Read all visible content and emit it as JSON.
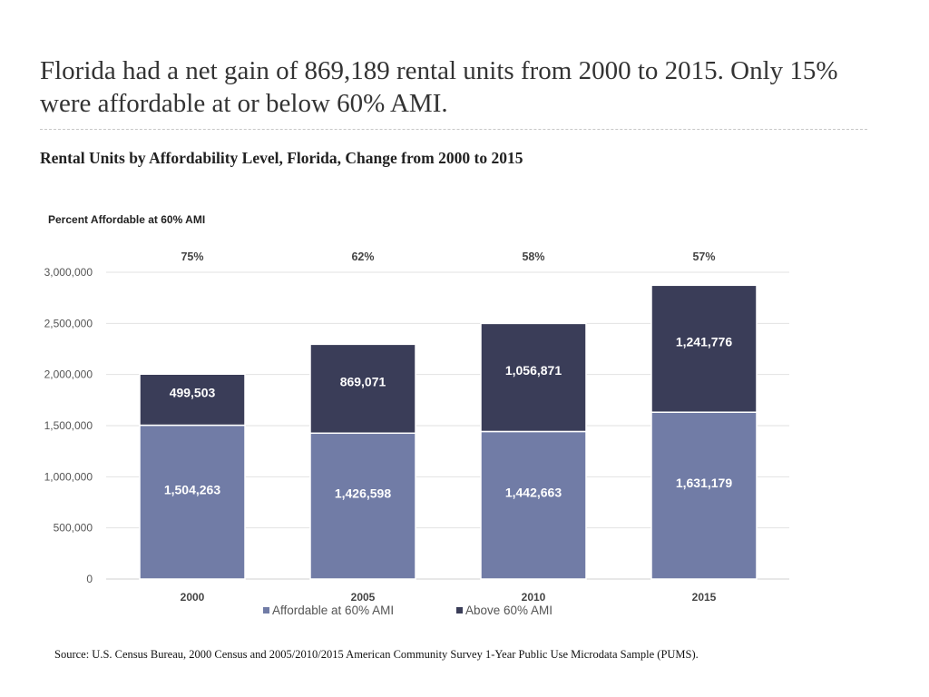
{
  "headline": "Florida had a net gain of 869,189 rental units from 2000 to 2015. Only 15% were affordable at or below 60% AMI.",
  "subtitle": "Rental Units by Affordability Level, Florida, Change from 2000 to 2015",
  "source": "Source: U.S. Census Bureau, 2000 Census and 2005/2010/2015 American Community Survey 1-Year Public Use Microdata Sample (PUMS).",
  "chart_data": {
    "type": "bar",
    "stacked": true,
    "title": "Rental Units by Affordability Level, Florida, Change from 2000 to 2015",
    "categories": [
      "2000",
      "2005",
      "2010",
      "2015"
    ],
    "series": [
      {
        "name": "Affordable at 60% AMI",
        "values": [
          1504263,
          1426598,
          1442663,
          1631179
        ],
        "labels": [
          "1,504,263",
          "1,426,598",
          "1,442,663",
          "1,631,179"
        ],
        "color": "#717ca6"
      },
      {
        "name": "Above 60% AMI",
        "values": [
          499503,
          869071,
          1056871,
          1241776
        ],
        "labels": [
          "499,503",
          "869,071",
          "1,056,871",
          "1,241,776"
        ],
        "color": "#3a3d58"
      }
    ],
    "top_annotation_title": "Percent Affordable at 60% AMI",
    "top_annotations": [
      "75%",
      "62%",
      "58%",
      "57%"
    ],
    "ylim": [
      0,
      3000000
    ],
    "yticks": [
      0,
      500000,
      1000000,
      1500000,
      2000000,
      2500000,
      3000000
    ],
    "ytick_labels": [
      "0",
      "500,000",
      "1,000,000",
      "1,500,000",
      "2,000,000",
      "2,500,000",
      "3,000,000"
    ],
    "grid": true,
    "legend": "bottom-center",
    "xlabel": "",
    "ylabel": ""
  }
}
